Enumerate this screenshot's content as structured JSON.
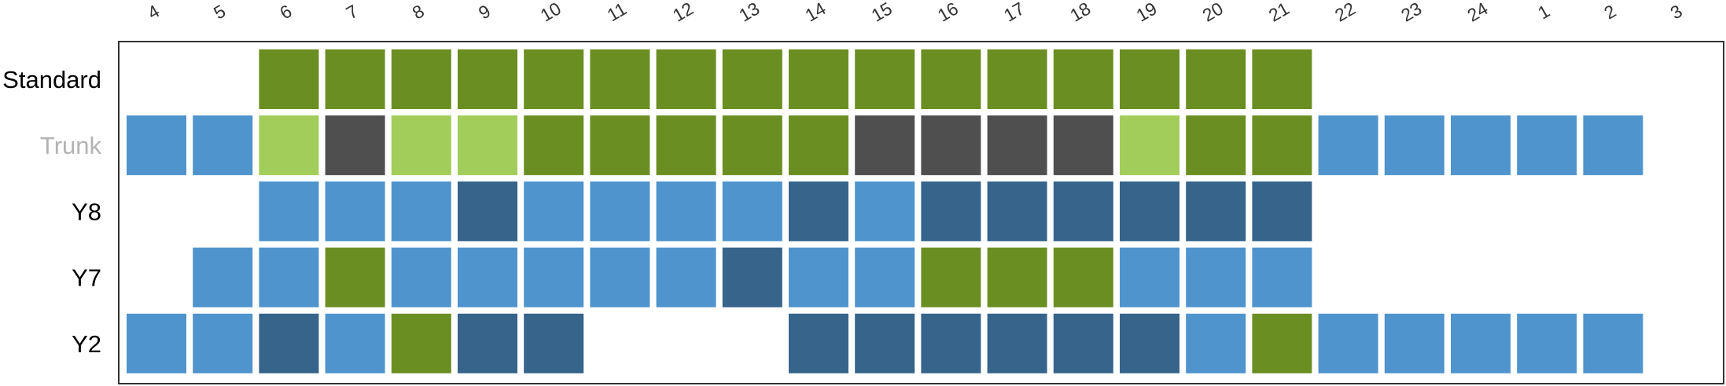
{
  "chart_data": {
    "type": "heatmap",
    "title": "",
    "xlabel": "",
    "ylabel": "",
    "columns": [
      "4",
      "5",
      "6",
      "7",
      "8",
      "9",
      "10",
      "11",
      "12",
      "13",
      "14",
      "15",
      "16",
      "17",
      "18",
      "19",
      "20",
      "21",
      "22",
      "23",
      "24",
      "1",
      "2",
      "3"
    ],
    "rows": [
      {
        "label": "Standard",
        "label_color": "#000000",
        "cells": [
          null,
          null,
          "G",
          "G",
          "G",
          "G",
          "G",
          "G",
          "G",
          "G",
          "G",
          "G",
          "G",
          "G",
          "G",
          "G",
          "G",
          "G",
          null,
          null,
          null,
          null,
          null,
          null
        ]
      },
      {
        "label": "Trunk",
        "label_color": "#b3b3b3",
        "cells": [
          "B",
          "B",
          "L",
          "K",
          "L",
          "L",
          "G",
          "G",
          "G",
          "G",
          "G",
          "K",
          "K",
          "K",
          "K",
          "L",
          "G",
          "G",
          "B",
          "B",
          "B",
          "B",
          "B",
          null
        ]
      },
      {
        "label": "Y8",
        "label_color": "#000000",
        "cells": [
          null,
          null,
          "B",
          "B",
          "B",
          "D",
          "B",
          "B",
          "B",
          "B",
          "D",
          "B",
          "D",
          "D",
          "D",
          "D",
          "D",
          "D",
          null,
          null,
          null,
          null,
          null,
          null
        ]
      },
      {
        "label": "Y7",
        "label_color": "#000000",
        "cells": [
          null,
          "B",
          "B",
          "G",
          "B",
          "B",
          "B",
          "B",
          "B",
          "D",
          "B",
          "B",
          "G",
          "G",
          "G",
          "B",
          "B",
          "B",
          null,
          null,
          null,
          null,
          null,
          null
        ]
      },
      {
        "label": "Y2",
        "label_color": "#000000",
        "cells": [
          "B",
          "B",
          "D",
          "B",
          "G",
          "D",
          "D",
          null,
          null,
          null,
          "D",
          "D",
          "D",
          "D",
          "D",
          "D",
          "B",
          "G",
          "B",
          "B",
          "B",
          "B",
          "B",
          null
        ]
      }
    ],
    "category_colors": {
      "G": "#6b8e23",
      "L": "#a2cd5a",
      "K": "#4f4f4f",
      "B": "#4f94cd",
      "D": "#36648b"
    },
    "grid": false,
    "legend": "none"
  }
}
